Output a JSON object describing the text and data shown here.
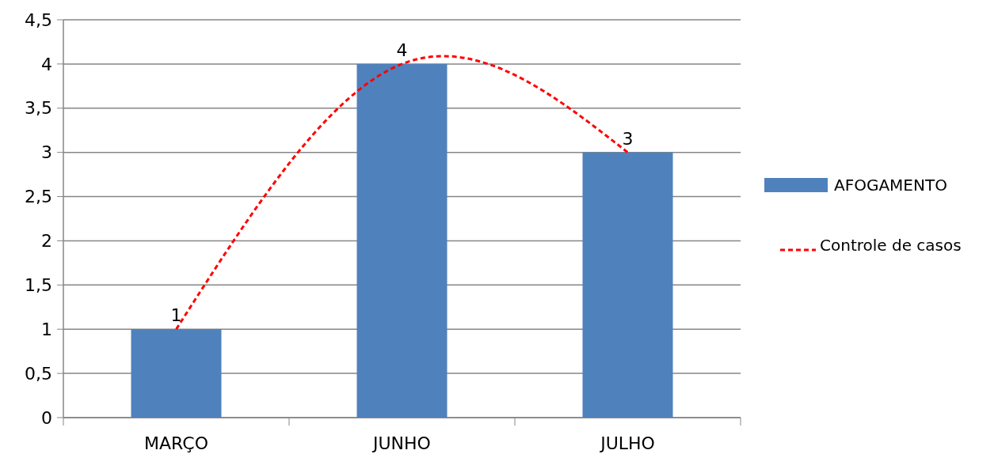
{
  "chart_data": {
    "type": "bar",
    "categories": [
      "MARÇO",
      "JUNHO",
      "JULHO"
    ],
    "series": [
      {
        "name": "AFOGAMENTO",
        "color": "#4f81bd",
        "values": [
          1,
          4,
          3
        ],
        "value_labels": [
          "1",
          "4",
          "3"
        ]
      },
      {
        "name": "Controle de casos",
        "type": "line",
        "color": "#ff0000",
        "line_style": "dashed",
        "marker": "none",
        "values": [
          1,
          4,
          3
        ]
      }
    ],
    "ylim": [
      0,
      4.5
    ],
    "yticks": [
      0,
      {
        "value": 0.5,
        "label": "0,5"
      },
      1,
      {
        "value": 1.5,
        "label": "1,5"
      },
      2,
      {
        "value": 2.5,
        "label": "2,5"
      },
      3,
      {
        "value": 3.5,
        "label": "3,5"
      },
      4,
      {
        "value": 4.5,
        "label": "4,5"
      }
    ],
    "grid": "y",
    "legend": "right"
  }
}
